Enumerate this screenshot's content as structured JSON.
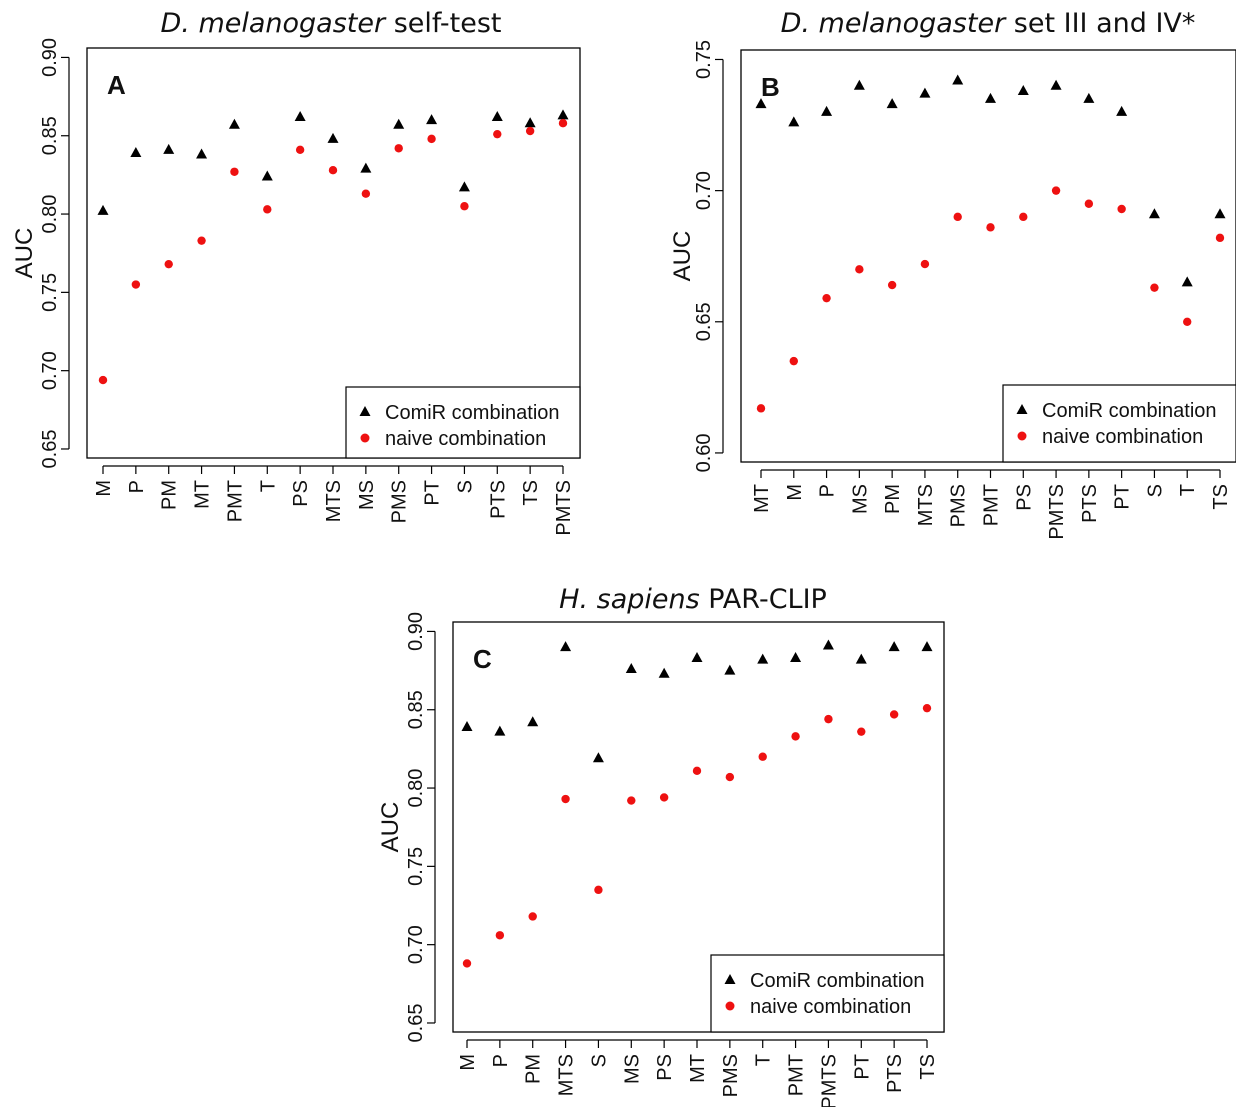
{
  "chart_data": [
    {
      "type": "scatter",
      "panel": "A",
      "title_italic": "D. melanogaster",
      "title_rest": " self-test",
      "ylabel": "AUC",
      "ylim": [
        0.65,
        0.9
      ],
      "yticks": [
        "0.65",
        "0.70",
        "0.75",
        "0.80",
        "0.85",
        "0.90"
      ],
      "categories": [
        "M",
        "P",
        "PM",
        "MT",
        "PMT",
        "T",
        "PS",
        "MTS",
        "MS",
        "PMS",
        "PT",
        "S",
        "PTS",
        "TS",
        "PMTS"
      ],
      "series": [
        {
          "name": "ComiR combination",
          "marker": "triangle",
          "color": "#000000",
          "values": [
            0.802,
            0.839,
            0.841,
            0.838,
            0.857,
            0.824,
            0.862,
            0.848,
            0.829,
            0.857,
            0.86,
            0.817,
            0.862,
            0.858,
            0.863
          ]
        },
        {
          "name": "naive combination",
          "marker": "circle",
          "color": "#ee1111",
          "values": [
            0.694,
            0.755,
            0.768,
            0.783,
            0.827,
            0.803,
            0.841,
            0.828,
            0.813,
            0.842,
            0.848,
            0.805,
            0.851,
            0.853,
            0.858
          ]
        }
      ],
      "legend_position": "bottom-right"
    },
    {
      "type": "scatter",
      "panel": "B",
      "title_italic": "D. melanogaster",
      "title_rest": " set III and IV*",
      "ylabel": "AUC",
      "ylim": [
        0.6,
        0.75
      ],
      "yticks": [
        "0.60",
        "0.65",
        "0.70",
        "0.75"
      ],
      "categories": [
        "MT",
        "M",
        "P",
        "MS",
        "PM",
        "MTS",
        "PMS",
        "PMT",
        "PS",
        "PMTS",
        "PTS",
        "PT",
        "S",
        "T",
        "TS"
      ],
      "series": [
        {
          "name": "ComiR combination",
          "marker": "triangle",
          "color": "#000000",
          "values": [
            0.733,
            0.726,
            0.73,
            0.74,
            0.733,
            0.737,
            0.742,
            0.735,
            0.738,
            0.74,
            0.735,
            0.73,
            0.691,
            0.665,
            0.691
          ]
        },
        {
          "name": "naive combination",
          "marker": "circle",
          "color": "#ee1111",
          "values": [
            0.617,
            0.635,
            0.659,
            0.67,
            0.664,
            0.672,
            0.69,
            0.686,
            0.69,
            0.7,
            0.695,
            0.693,
            0.663,
            0.65,
            0.682
          ]
        }
      ],
      "legend_position": "bottom-right"
    },
    {
      "type": "scatter",
      "panel": "C",
      "title_italic": "H. sapiens",
      "title_rest": " PAR-CLIP",
      "ylabel": "AUC",
      "ylim": [
        0.65,
        0.9
      ],
      "yticks": [
        "0.65",
        "0.70",
        "0.75",
        "0.80",
        "0.85",
        "0.90"
      ],
      "categories": [
        "M",
        "P",
        "PM",
        "MTS",
        "S",
        "MS",
        "PS",
        "MT",
        "PMS",
        "T",
        "PMT",
        "PMTS",
        "PT",
        "PTS",
        "TS"
      ],
      "series": [
        {
          "name": "ComiR combination",
          "marker": "triangle",
          "color": "#000000",
          "values": [
            0.839,
            0.836,
            0.842,
            0.89,
            0.819,
            0.876,
            0.873,
            0.883,
            0.875,
            0.882,
            0.883,
            0.891,
            0.882,
            0.89,
            0.89
          ]
        },
        {
          "name": "naive combination",
          "marker": "circle",
          "color": "#ee1111",
          "values": [
            0.688,
            0.706,
            0.718,
            0.793,
            0.735,
            0.792,
            0.794,
            0.811,
            0.807,
            0.82,
            0.833,
            0.844,
            0.836,
            0.847,
            0.851
          ]
        }
      ],
      "legend_position": "bottom-right"
    }
  ]
}
